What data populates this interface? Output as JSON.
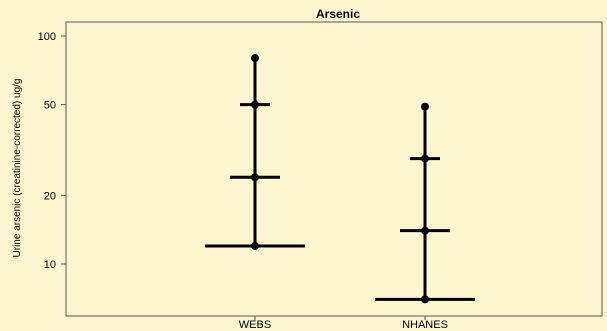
{
  "chart_data": {
    "type": "scatter",
    "title": "Arsenic",
    "ylabel": "Urine arsenic (creatinine-corrected) ug/g",
    "xlabel": "",
    "y_scale": "log",
    "ylim": [
      6,
      130
    ],
    "y_ticks": [
      10,
      20,
      50,
      100
    ],
    "y_tick_labels": [
      "10",
      "20",
      "50",
      "100"
    ],
    "categories": [
      "WEBS",
      "NHANES"
    ],
    "series": [
      {
        "category": "WEBS",
        "percentile_50": 12,
        "percentile_75": 24,
        "percentile_90": 50,
        "percentile_95": 80
      },
      {
        "category": "NHANES",
        "percentile_50": 7,
        "percentile_75": 14,
        "percentile_90": 29,
        "percentile_95": 49
      }
    ],
    "grid": false,
    "colors": {
      "background": "#fdf6d0",
      "marks": "#000000"
    }
  }
}
